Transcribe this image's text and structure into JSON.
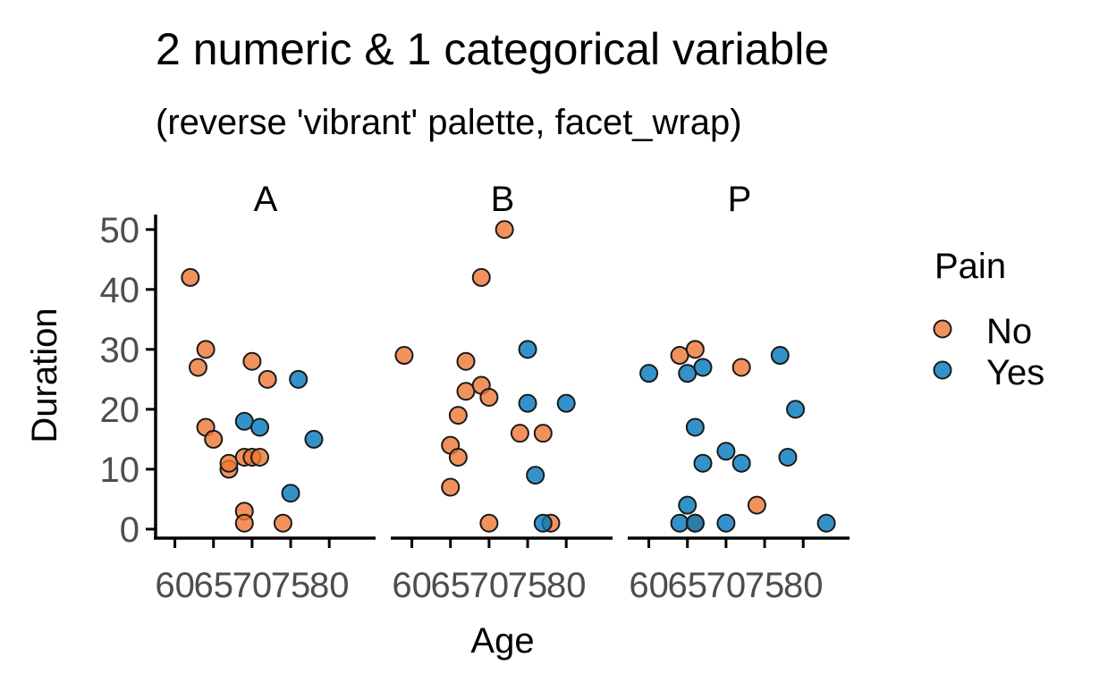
{
  "chart_data": {
    "type": "scatter",
    "title": "2 numeric & 1 categorical variable",
    "subtitle": "(reverse 'vibrant' palette, facet_wrap)",
    "xlabel": "Age",
    "ylabel": "Duration",
    "xlim": [
      57.5,
      86
    ],
    "ylim": [
      -1.5,
      52.5
    ],
    "x_ticks": [
      60,
      65,
      70,
      75,
      80
    ],
    "y_ticks": [
      0,
      10,
      20,
      30,
      40,
      50
    ],
    "grid": false,
    "legend": {
      "title": "Pain",
      "placement": "right",
      "entries": [
        {
          "label": "No",
          "color": "#ee7733"
        },
        {
          "label": "Yes",
          "color": "#0077bb"
        }
      ]
    },
    "point_opacity": 0.8,
    "facets": [
      {
        "label": "A",
        "series": [
          {
            "name": "No",
            "points": [
              [
                62,
                42
              ],
              [
                63,
                27
              ],
              [
                64,
                30
              ],
              [
                64,
                17
              ],
              [
                65,
                15
              ],
              [
                67,
                10
              ],
              [
                67,
                11
              ],
              [
                69,
                12
              ],
              [
                69,
                3
              ],
              [
                69,
                1
              ],
              [
                70,
                28
              ],
              [
                70,
                12
              ],
              [
                71,
                12
              ],
              [
                72,
                25
              ],
              [
                74,
                1
              ]
            ]
          },
          {
            "name": "Yes",
            "points": [
              [
                69,
                18
              ],
              [
                71,
                17
              ],
              [
                76,
                25
              ],
              [
                75,
                6
              ],
              [
                78,
                15
              ]
            ]
          }
        ]
      },
      {
        "label": "B",
        "series": [
          {
            "name": "No",
            "points": [
              [
                59,
                29
              ],
              [
                65,
                14
              ],
              [
                65,
                7
              ],
              [
                66,
                19
              ],
              [
                66,
                12
              ],
              [
                67,
                28
              ],
              [
                67,
                23
              ],
              [
                69,
                24
              ],
              [
                69,
                42
              ],
              [
                70,
                22
              ],
              [
                70,
                1
              ],
              [
                72,
                50
              ],
              [
                74,
                16
              ],
              [
                77,
                16
              ],
              [
                78,
                1
              ]
            ]
          },
          {
            "name": "Yes",
            "points": [
              [
                75,
                30
              ],
              [
                75,
                21
              ],
              [
                76,
                9
              ],
              [
                77,
                1
              ],
              [
                80,
                21
              ]
            ]
          }
        ]
      },
      {
        "label": "P",
        "series": [
          {
            "name": "No",
            "points": [
              [
                64,
                29
              ],
              [
                66,
                30
              ],
              [
                66,
                1
              ],
              [
                72,
                27
              ],
              [
                74,
                4
              ]
            ]
          },
          {
            "name": "Yes",
            "points": [
              [
                60,
                26
              ],
              [
                64,
                1
              ],
              [
                65,
                26
              ],
              [
                65,
                4
              ],
              [
                66,
                17
              ],
              [
                66,
                1
              ],
              [
                67,
                27
              ],
              [
                67,
                11
              ],
              [
                70,
                13
              ],
              [
                70,
                1
              ],
              [
                72,
                11
              ],
              [
                77,
                29
              ],
              [
                78,
                12
              ],
              [
                79,
                20
              ],
              [
                83,
                1
              ]
            ]
          }
        ]
      }
    ]
  }
}
